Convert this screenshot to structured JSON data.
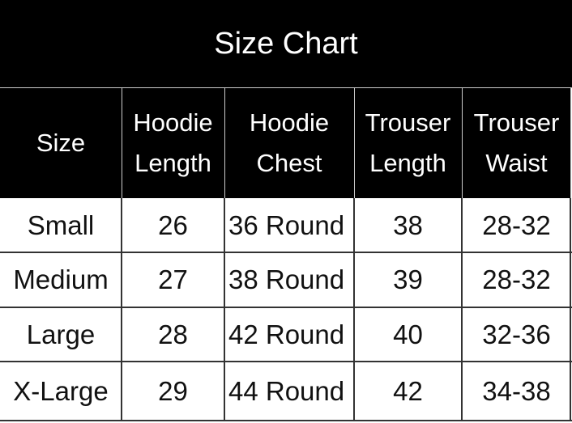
{
  "title": "Size Chart",
  "headers": [
    "Size",
    "Hoodie\nLength",
    "Hoodie\nChest",
    "Trouser\nLength",
    "Trouser\nWaist"
  ],
  "header_lines": [
    [
      "Size"
    ],
    [
      "Hoodie",
      "Length"
    ],
    [
      "Hoodie",
      "Chest"
    ],
    [
      "Trouser",
      "Length"
    ],
    [
      "Trouser",
      "Waist"
    ]
  ],
  "rows": [
    [
      "Small",
      "26",
      "36 Round",
      "38",
      "28-32"
    ],
    [
      "Medium",
      "27",
      "38 Round",
      "39",
      "28-32"
    ],
    [
      "Large",
      "28",
      "42 Round",
      "40",
      "32-36"
    ],
    [
      "X-Large",
      "29",
      "44 Round",
      "42",
      "34-38"
    ]
  ],
  "colors": {
    "header_bg": "#000000",
    "header_text": "#ffffff",
    "body_text": "#111111"
  }
}
